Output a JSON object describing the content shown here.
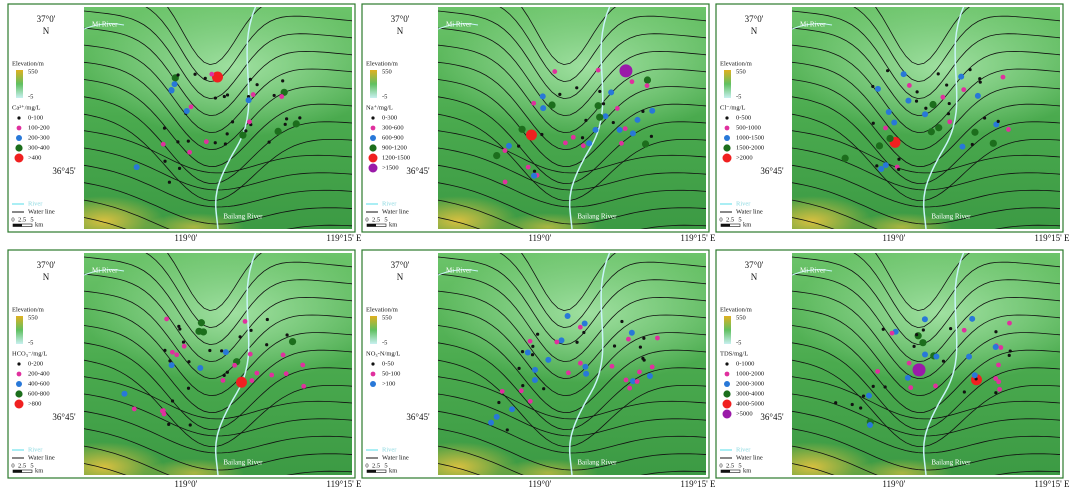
{
  "common": {
    "lat_top": "37°0'",
    "north": "N",
    "lat_mid": "36°45'",
    "lon_left": "119°0'",
    "lon_right": "119°15' E",
    "mi_river": "Mi River",
    "bailang_river": "Bailang River",
    "elevation": "Elevation/m",
    "elev_max": "550",
    "elev_min": "-5",
    "river": "River",
    "water_line": "Water line",
    "scale": [
      "0",
      "2.5",
      "5",
      "km"
    ]
  },
  "panels": [
    {
      "parameter": "Ca²⁺/mg/L",
      "classes": [
        {
          "label": "0-100",
          "color": "#111111"
        },
        {
          "label": "100-200",
          "color": "#e0309e"
        },
        {
          "label": "200-300",
          "color": "#2878d8"
        },
        {
          "label": "300-400",
          "color": "#1c6e1c"
        },
        {
          "label": ">400",
          "color": "#f02020"
        }
      ]
    },
    {
      "parameter": "Na⁺/mg/L",
      "classes": [
        {
          "label": "0-300",
          "color": "#111111"
        },
        {
          "label": "300-600",
          "color": "#e0309e"
        },
        {
          "label": "600-900",
          "color": "#2878d8"
        },
        {
          "label": "900-1200",
          "color": "#1c6e1c"
        },
        {
          "label": "1200-1500",
          "color": "#f02020"
        },
        {
          "label": ">1500",
          "color": "#9a1aa8"
        }
      ]
    },
    {
      "parameter": "Cl⁻/mg/L",
      "classes": [
        {
          "label": "0-500",
          "color": "#111111"
        },
        {
          "label": "500-1000",
          "color": "#e0309e"
        },
        {
          "label": "1000-1500",
          "color": "#2878d8"
        },
        {
          "label": "1500-2000",
          "color": "#1c6e1c"
        },
        {
          "label": ">2000",
          "color": "#f02020"
        }
      ]
    },
    {
      "parameter": "HCO₃⁻/mg/L",
      "classes": [
        {
          "label": "0-200",
          "color": "#111111"
        },
        {
          "label": "200-400",
          "color": "#e0309e"
        },
        {
          "label": "400-600",
          "color": "#2878d8"
        },
        {
          "label": "600-800",
          "color": "#1c6e1c"
        },
        {
          "label": ">800",
          "color": "#f02020"
        }
      ]
    },
    {
      "parameter": "NO₃-N/mg/L",
      "classes": [
        {
          "label": "0-50",
          "color": "#111111"
        },
        {
          "label": "50-100",
          "color": "#e0309e"
        },
        {
          "label": ">100",
          "color": "#2878d8"
        }
      ]
    },
    {
      "parameter": "TDS/mg/L",
      "classes": [
        {
          "label": "0-1000",
          "color": "#111111"
        },
        {
          "label": "1000-2000",
          "color": "#e0309e"
        },
        {
          "label": "2000-3000",
          "color": "#2878d8"
        },
        {
          "label": "3000-4000",
          "color": "#1c6e1c"
        },
        {
          "label": "4000-5000",
          "color": "#f02020"
        },
        {
          "label": ">5000",
          "color": "#9a1aa8"
        }
      ]
    }
  ]
}
